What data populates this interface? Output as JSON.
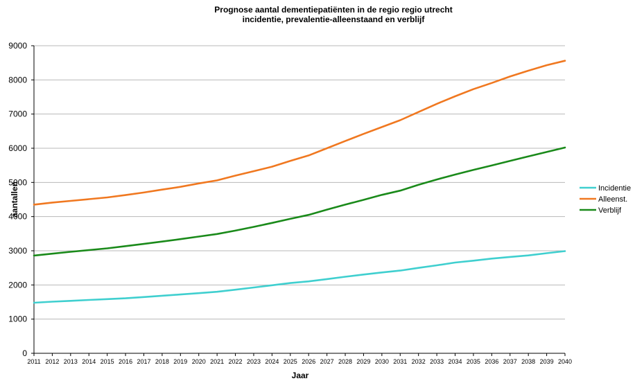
{
  "chart_data": {
    "type": "line",
    "title": "Prognose aantal dementiepatiënten in de regio regio utrecht",
    "subtitle": "incidentie, prevalentie-alleenstaand en verblijf",
    "xlabel": "Jaar",
    "ylabel": "aantallen",
    "ylim": [
      0,
      9000
    ],
    "yticks": [
      0,
      1000,
      2000,
      3000,
      4000,
      5000,
      6000,
      7000,
      8000,
      9000
    ],
    "x": [
      "2011",
      "2012",
      "2013",
      "2014",
      "2015",
      "2016",
      "2017",
      "2018",
      "2019",
      "2020",
      "2021",
      "2022",
      "2023",
      "2024",
      "2025",
      "2026",
      "2027",
      "2028",
      "2029",
      "2030",
      "2031",
      "2032",
      "2033",
      "2034",
      "2035",
      "2036",
      "2037",
      "2038",
      "2039",
      "2040"
    ],
    "grid": "horizontal",
    "legend_position": "right",
    "series": [
      {
        "name": "Incidentie",
        "color": "#3fcfcf",
        "values": [
          1480,
          1510,
          1535,
          1560,
          1585,
          1610,
          1645,
          1685,
          1720,
          1760,
          1800,
          1860,
          1925,
          1990,
          2055,
          2105,
          2170,
          2240,
          2305,
          2365,
          2420,
          2500,
          2575,
          2655,
          2710,
          2770,
          2820,
          2865,
          2930,
          2990
        ]
      },
      {
        "name": "Alleenst.",
        "color": "#f07820",
        "values": [
          4350,
          4410,
          4460,
          4510,
          4560,
          4630,
          4705,
          4790,
          4870,
          4970,
          5060,
          5200,
          5330,
          5460,
          5630,
          5790,
          6000,
          6210,
          6420,
          6620,
          6820,
          7060,
          7300,
          7520,
          7730,
          7910,
          8100,
          8270,
          8430,
          8560
        ]
      },
      {
        "name": "Verblijf",
        "color": "#1a8a1a",
        "values": [
          2860,
          2915,
          2970,
          3020,
          3070,
          3135,
          3200,
          3270,
          3340,
          3415,
          3490,
          3590,
          3700,
          3815,
          3935,
          4050,
          4205,
          4350,
          4490,
          4635,
          4760,
          4930,
          5085,
          5230,
          5365,
          5495,
          5630,
          5760,
          5890,
          6020
        ]
      }
    ]
  }
}
